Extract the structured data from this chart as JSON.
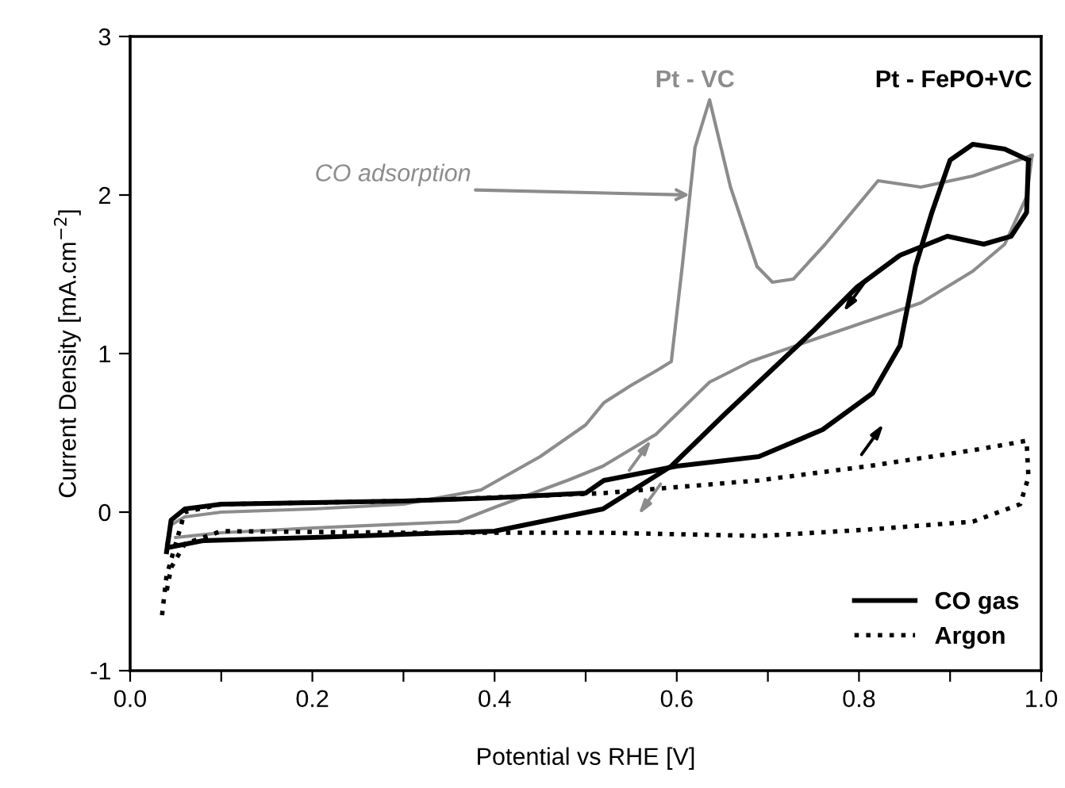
{
  "chart_data": {
    "type": "line",
    "xlabel": "Potential vs RHE [V]",
    "ylabel": "Current Density [mA.cm$^{−2}$]",
    "xlim": [
      0,
      1
    ],
    "ylim": [
      -1,
      3
    ],
    "xticks": [
      {
        "value": 0,
        "label": "0.0"
      },
      {
        "value": 0.1,
        "label": null
      },
      {
        "value": 0.2,
        "label": "0.2"
      },
      {
        "value": 0.3,
        "label": null
      },
      {
        "value": 0.4,
        "label": "0.4"
      },
      {
        "value": 0.5,
        "label": null
      },
      {
        "value": 0.6,
        "label": "0.6"
      },
      {
        "value": 0.7,
        "label": null
      },
      {
        "value": 0.8,
        "label": "0.8"
      },
      {
        "value": 0.9,
        "label": null
      },
      {
        "value": 1,
        "label": "1.0"
      }
    ],
    "yticks": [
      -1,
      0,
      1,
      2,
      3
    ],
    "grid": false,
    "legend": "bottom right",
    "marker": "none",
    "annotations": [
      "Pt - VC",
      "Pt - FePO+VC",
      {
        "text": "CO adsorption",
        "x": 0.614,
        "y": 2.0
      }
    ],
    "series": [
      {
        "color": "#8c8c8c",
        "line_style": "solid",
        "x": [
          0.04,
          0.045,
          0.06,
          0.1,
          0.2,
          0.3,
          0.385,
          0.45,
          0.5,
          0.52,
          0.55,
          0.58,
          0.594,
          0.606,
          0.62,
          0.636,
          0.659,
          0.688,
          0.705,
          0.728,
          0.763,
          0.821,
          0.868,
          0.925,
          0.99
        ],
        "values": [
          -0.2,
          -0.08,
          -0.03,
          0.0,
          0.02,
          0.05,
          0.14,
          0.35,
          0.55,
          0.69,
          0.8,
          0.9,
          0.95,
          1.55,
          2.3,
          2.6,
          2.05,
          1.55,
          1.45,
          1.47,
          1.69,
          2.09,
          2.05,
          2.12,
          2.25
        ]
      },
      {
        "color": "#8c8c8c",
        "line_style": "solid",
        "x": [
          0.99,
          0.984,
          0.96,
          0.925,
          0.868,
          0.751,
          0.681,
          0.636,
          0.577,
          0.519,
          0.48,
          0.4,
          0.36,
          0.2,
          0.1,
          0.05
        ],
        "values": [
          2.25,
          1.99,
          1.69,
          1.52,
          1.32,
          1.09,
          0.95,
          0.82,
          0.49,
          0.29,
          0.2,
          0.03,
          -0.06,
          -0.1,
          -0.13,
          -0.16
        ]
      },
      {
        "name": "CO gas",
        "color": "#000000",
        "line_style": "solid",
        "x": [
          0.04,
          0.045,
          0.06,
          0.1,
          0.2,
          0.3,
          0.4,
          0.5,
          0.52,
          0.6,
          0.69,
          0.76,
          0.815,
          0.845,
          0.862,
          0.88,
          0.9,
          0.925,
          0.96,
          0.986
        ],
        "values": [
          -0.25,
          -0.05,
          0.02,
          0.05,
          0.06,
          0.07,
          0.09,
          0.12,
          0.2,
          0.29,
          0.35,
          0.52,
          0.75,
          1.05,
          1.55,
          1.89,
          2.22,
          2.32,
          2.29,
          2.22
        ]
      },
      {
        "color": "#000000",
        "line_style": "solid",
        "x": [
          0.986,
          0.984,
          0.967,
          0.937,
          0.897,
          0.845,
          0.798,
          0.751,
          0.653,
          0.594,
          0.519,
          0.4,
          0.2,
          0.08,
          0.045
        ],
        "values": [
          2.22,
          1.89,
          1.74,
          1.69,
          1.74,
          1.62,
          1.42,
          1.15,
          0.62,
          0.29,
          0.02,
          -0.12,
          -0.16,
          -0.18,
          -0.22
        ]
      },
      {
        "name": "Argon",
        "color": "#000000",
        "line_style": "dotted",
        "x": [
          0.035,
          0.04,
          0.05,
          0.06,
          0.1,
          0.3,
          0.52,
          0.69,
          0.81,
          0.925,
          0.984,
          0.986,
          0.977,
          0.925,
          0.81,
          0.693,
          0.519,
          0.3,
          0.1,
          0.06,
          0.045,
          0.04
        ],
        "values": [
          -0.65,
          -0.4,
          -0.2,
          0.0,
          0.05,
          0.07,
          0.12,
          0.2,
          0.29,
          0.39,
          0.45,
          0.22,
          0.05,
          -0.06,
          -0.11,
          -0.15,
          -0.13,
          -0.13,
          -0.12,
          -0.2,
          -0.35,
          -0.5
        ]
      }
    ]
  }
}
